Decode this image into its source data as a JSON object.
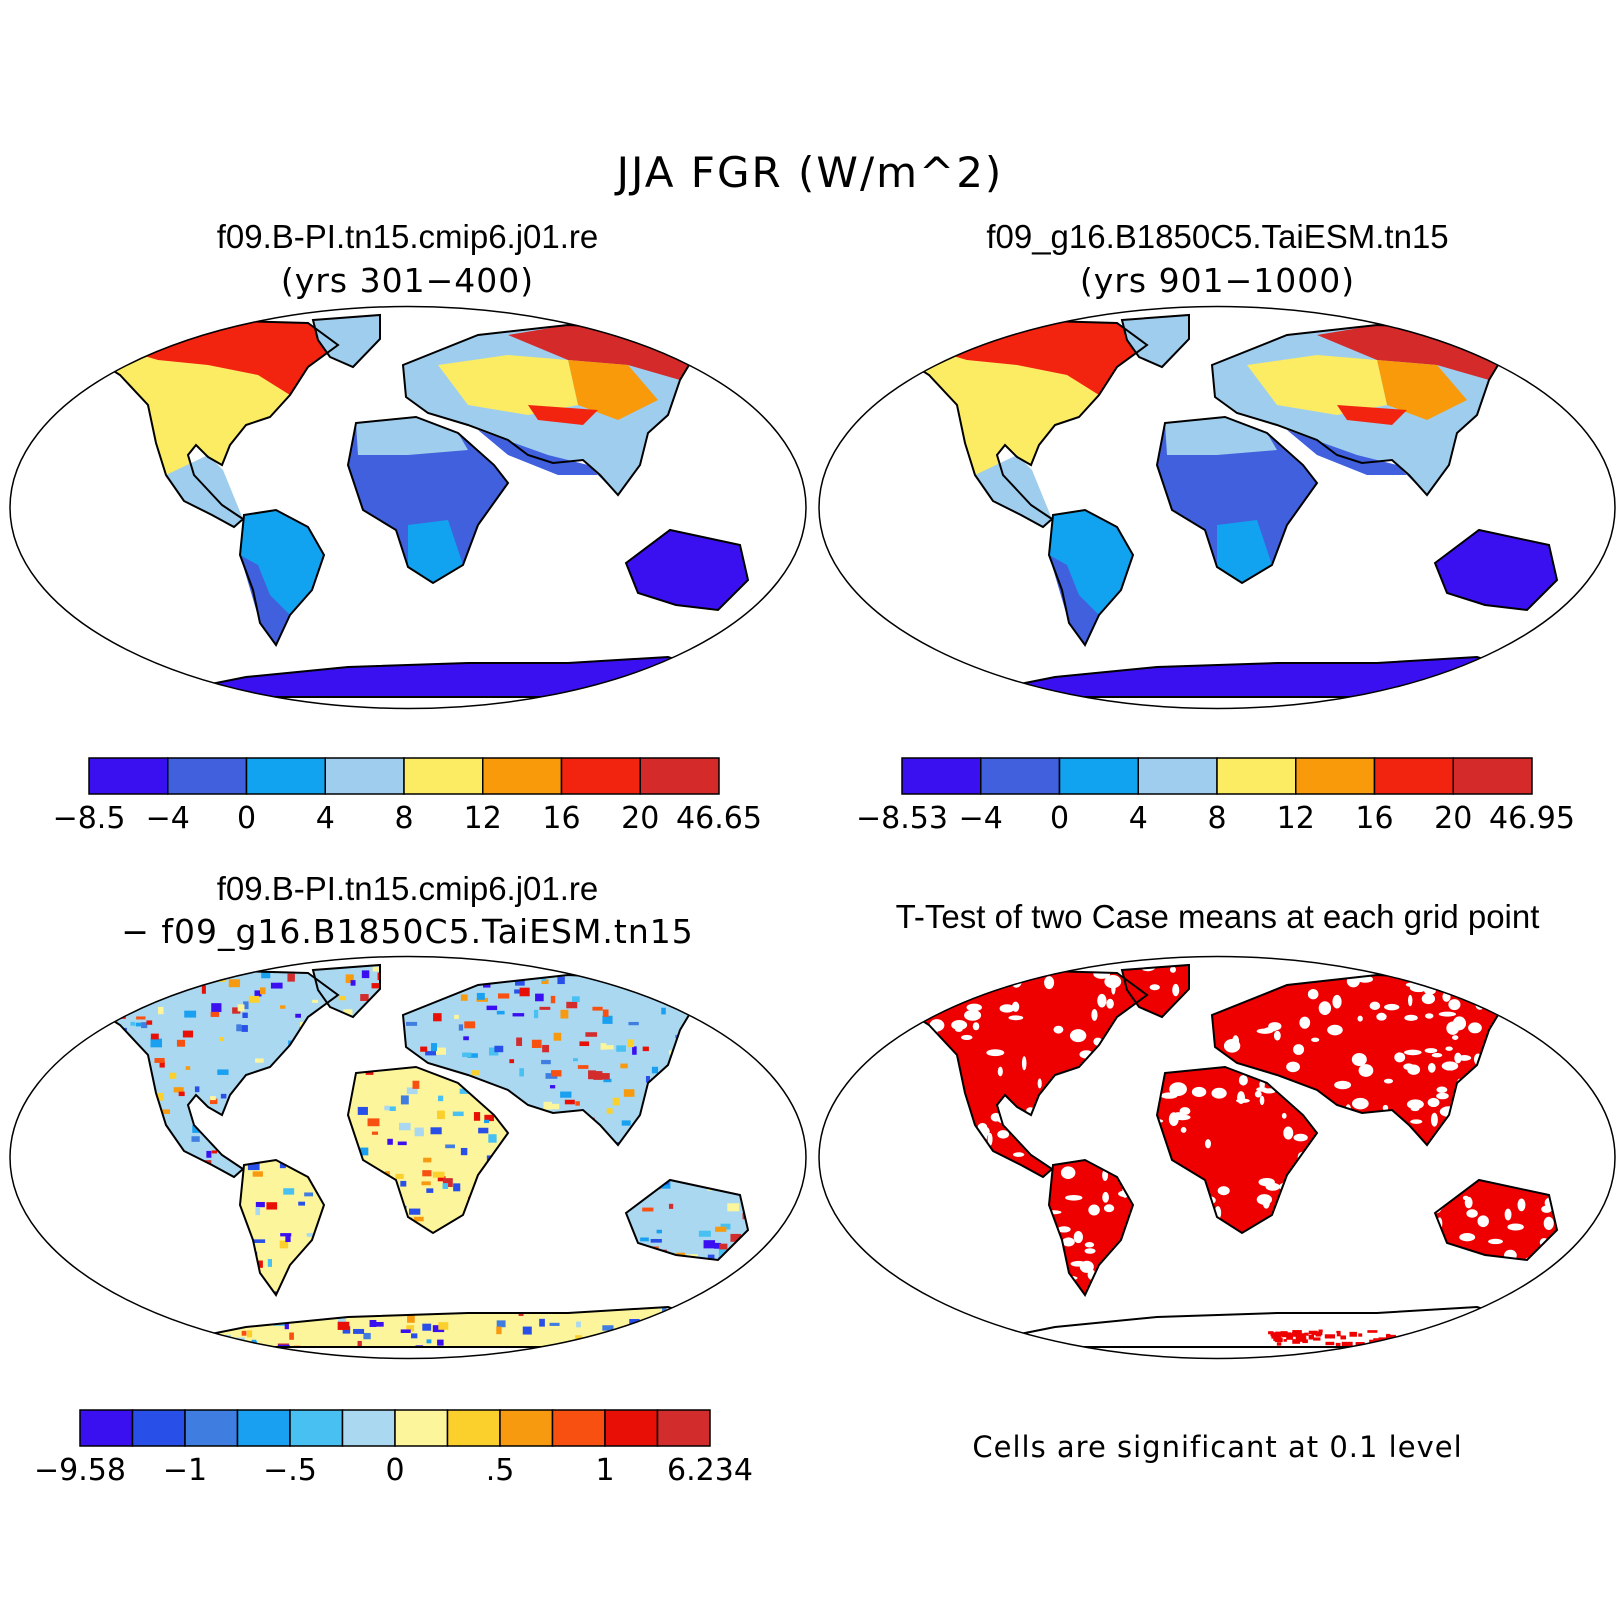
{
  "title": "JJA FGR (W/m^2)",
  "panels": [
    {
      "case": "f09.B-PI.tn15.cmip6.j01.re",
      "years": "(yrs 301−400)",
      "colorbar": {
        "colors": [
          "#3a10f0",
          "#4060dd",
          "#12a3f0",
          "#9fcdee",
          "#fbec64",
          "#f89a0a",
          "#f22410",
          "#d42a2a"
        ],
        "labels": [
          "−8.5",
          "−4",
          "0",
          "4",
          "8",
          "12",
          "16",
          "20",
          "46.65"
        ]
      }
    },
    {
      "case": "f09_g16.B1850C5.TaiESM.tn15",
      "years": "(yrs 901−1000)",
      "colorbar": {
        "colors": [
          "#3a10f0",
          "#4060dd",
          "#12a3f0",
          "#9fcdee",
          "#fbec64",
          "#f89a0a",
          "#f22410",
          "#d42a2a"
        ],
        "labels": [
          "−8.53",
          "−4",
          "0",
          "4",
          "8",
          "12",
          "16",
          "20",
          "46.95"
        ]
      }
    },
    {
      "case": "f09.B-PI.tn15.cmip6.j01.re",
      "subtitle": "− f09_g16.B1850C5.TaiESM.tn15",
      "colorbar": {
        "colors": [
          "#3a10f0",
          "#2850e8",
          "#3f7de0",
          "#1aa0f0",
          "#48c0f2",
          "#a9d8f0",
          "#fdf59c",
          "#fcd02c",
          "#f89a10",
          "#f85010",
          "#e81006",
          "#d22c2c"
        ],
        "labels": [
          "−9.58",
          "",
          "−1",
          "",
          "−.5",
          "",
          "0",
          "",
          ".5",
          "",
          "1",
          "",
          "6.234"
        ]
      }
    },
    {
      "title": "T-Test of two Case means at each grid point",
      "note": "Cells are significant at 0.1 level",
      "fill_color": "#ee0000"
    }
  ]
}
